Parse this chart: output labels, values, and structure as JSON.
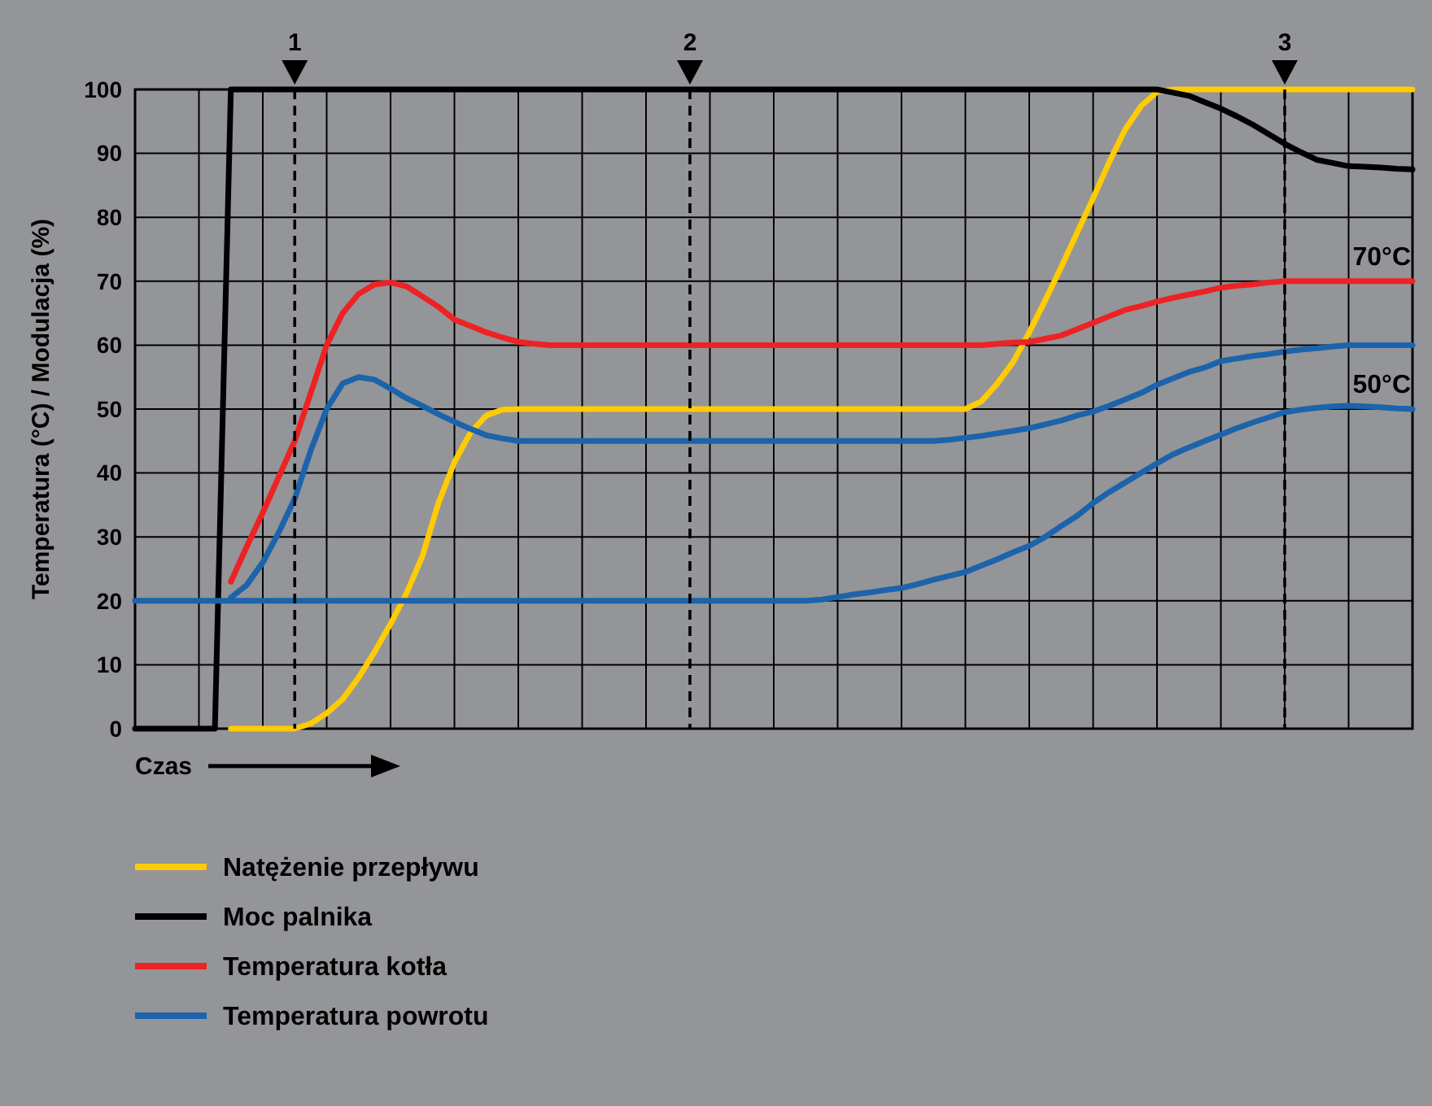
{
  "chart_data": {
    "type": "line",
    "ylabel": "Temperatura (°C) / Modulacja (%)",
    "xlabel": "Czas",
    "categories": [
      null,
      null,
      null,
      null,
      null,
      null,
      null,
      null,
      null,
      null,
      null,
      null,
      null,
      null,
      null,
      null,
      null,
      null,
      null,
      null,
      null,
      null,
      null,
      null,
      null,
      null,
      null,
      null,
      null,
      null,
      null,
      null,
      null,
      null,
      null,
      null,
      null,
      null,
      null,
      null,
      null,
      null,
      null,
      null,
      null,
      null,
      null,
      null,
      null,
      null,
      null,
      null,
      null,
      null,
      null,
      null,
      null,
      null,
      null,
      null,
      null,
      null,
      null,
      null,
      null,
      null,
      null,
      null,
      null,
      null,
      null,
      null,
      null,
      null,
      null,
      null,
      null,
      null,
      null,
      null,
      null
    ],
    "ylim": [
      0,
      100
    ],
    "yticks": [
      0,
      10,
      20,
      30,
      40,
      50,
      60,
      70,
      80,
      90,
      100
    ],
    "grid": true,
    "legend": "bottom",
    "series": [
      {
        "name": "Natężenie przepływu",
        "color": "#ffcb05",
        "values": [
          null,
          null,
          null,
          null,
          null,
          null,
          0,
          0,
          0,
          0,
          0,
          0.8,
          2.4,
          4.6,
          8,
          12,
          16.4,
          21.2,
          27,
          35.3,
          41.7,
          46.3,
          49,
          49.9,
          50,
          50,
          50,
          50,
          50,
          50,
          50,
          50,
          50,
          50,
          50,
          50,
          50,
          50,
          50,
          50,
          50,
          50,
          50,
          50,
          50,
          50,
          50,
          50,
          50,
          50,
          50,
          50,
          50,
          51.2,
          54,
          57.4,
          62,
          67,
          72.2,
          77.6,
          83,
          88.6,
          93.7,
          97.4,
          99.6,
          100,
          100,
          100,
          100,
          100,
          100,
          100,
          100,
          100,
          100,
          100,
          100,
          100,
          100,
          100,
          100
        ]
      },
      {
        "name": "Moc palnika",
        "color": "#000000",
        "values": [
          0,
          0,
          0,
          0,
          0,
          0,
          100,
          100,
          100,
          100,
          100,
          100,
          100,
          100,
          100,
          100,
          100,
          100,
          100,
          100,
          100,
          100,
          100,
          100,
          100,
          100,
          100,
          100,
          100,
          100,
          100,
          100,
          100,
          100,
          100,
          100,
          100,
          100,
          100,
          100,
          100,
          100,
          100,
          100,
          100,
          100,
          100,
          100,
          100,
          100,
          100,
          100,
          100,
          100,
          100,
          100,
          100,
          100,
          100,
          100,
          100,
          100,
          100,
          100,
          100,
          99.5,
          99,
          98,
          97,
          95.8,
          94.5,
          93,
          91.5,
          90.2,
          89,
          88.5,
          88,
          87.9,
          87.8,
          87.6,
          87.5
        ]
      },
      {
        "name": "Temperatura kotła",
        "color": "#ed2224",
        "values": [
          null,
          null,
          null,
          null,
          null,
          null,
          23,
          28.5,
          33.8,
          39.4,
          45,
          52.5,
          60,
          65,
          68,
          69.5,
          69.8,
          69.2,
          67.6,
          66,
          64,
          63,
          62,
          61.2,
          60.5,
          60.2,
          60,
          60,
          60,
          60,
          60,
          60,
          60,
          60,
          60,
          60,
          60,
          60,
          60,
          60,
          60,
          60,
          60,
          60,
          60,
          60,
          60,
          60,
          60,
          60,
          60,
          60,
          60,
          60,
          60.2,
          60.4,
          60.5,
          61,
          61.5,
          62.5,
          63.5,
          64.5,
          65.5,
          66.1,
          66.8,
          67.4,
          67.9,
          68.4,
          69,
          69.3,
          69.5,
          69.8,
          70,
          70,
          70,
          70,
          70,
          70,
          70,
          70,
          70
        ]
      },
      {
        "name": "Temperatura powrotu",
        "color": "#1c63ab",
        "values": [
          null,
          null,
          null,
          null,
          null,
          null,
          20.5,
          22.5,
          26,
          30.7,
          36,
          43.5,
          50,
          54,
          55,
          54.6,
          53.2,
          51.7,
          50.5,
          49.2,
          48,
          46.9,
          45.9,
          45.4,
          45,
          45,
          45,
          45,
          45,
          45,
          45,
          45,
          45,
          45,
          45,
          45,
          45,
          45,
          45,
          45,
          45,
          45,
          45,
          45,
          45,
          45,
          45,
          45,
          45,
          45,
          45,
          45.2,
          45.5,
          45.8,
          46.2,
          46.6,
          47,
          47.6,
          48.2,
          49,
          49.6,
          50.5,
          51.5,
          52.5,
          53.8,
          54.8,
          55.8,
          56.5,
          57.5,
          57.9,
          58.3,
          58.6,
          59,
          59.3,
          59.5,
          59.8,
          60,
          60,
          60,
          60,
          60
        ]
      },
      {
        "color": "#1c63ab",
        "values": [
          20,
          20,
          20,
          20,
          20,
          20,
          20,
          20,
          20,
          20,
          20,
          20,
          20,
          20,
          20,
          20,
          20,
          20,
          20,
          20,
          20,
          20,
          20,
          20,
          20,
          20,
          20,
          20,
          20,
          20,
          20,
          20,
          20,
          20,
          20,
          20,
          20,
          20,
          20,
          20,
          20,
          20,
          20,
          20.2,
          20.6,
          21,
          21.3,
          21.7,
          22,
          22.6,
          23.3,
          23.9,
          24.5,
          25.5,
          26.5,
          27.6,
          28.6,
          30,
          31.7,
          33.3,
          35.3,
          37,
          38.5,
          40,
          41.5,
          42.9,
          44,
          45,
          46,
          47,
          47.9,
          48.7,
          49.5,
          49.9,
          50.2,
          50.4,
          50.5,
          50.4,
          50.3,
          50.1,
          50
        ]
      }
    ],
    "annotations": [
      "1",
      "2",
      "3",
      {
        "text": "70°C",
        "y": 70
      },
      {
        "text": "50°C",
        "y": 50
      }
    ]
  }
}
